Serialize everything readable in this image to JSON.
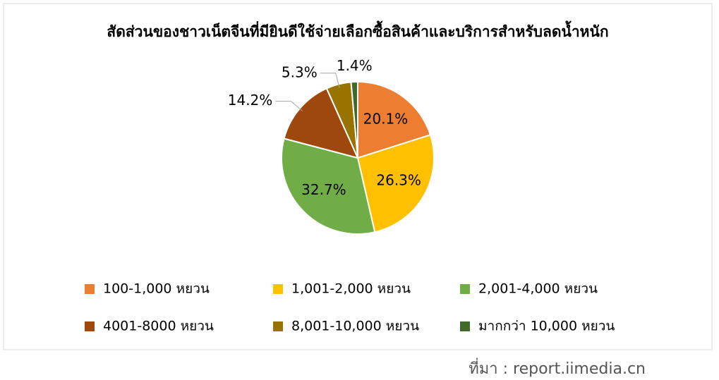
{
  "chart_data": {
    "type": "pie",
    "title": "สัดส่วนของชาวเน็ตจีนที่มียินดีใช้จ่ายเลือกซื้อสินค้าและบริการสำหรับลดน้ำหนัก",
    "categories": [
      "100-1,000 หยวน",
      "1,001-2,000 หยวน",
      "2,001-4,000 หยวน",
      "4001-8000 หยวน",
      "8,001-10,000 หยวน",
      "มากกว่า 10,000 หยวน"
    ],
    "values": [
      20.1,
      26.3,
      32.7,
      14.2,
      5.3,
      1.4
    ],
    "value_labels": [
      "20.1%",
      "26.3%",
      "32.7%",
      "14.2%",
      "5.3%",
      "1.4%"
    ],
    "colors": [
      "#ED7D31",
      "#FFC000",
      "#70AD47",
      "#9E480E",
      "#997300",
      "#43682B"
    ],
    "source": "ที่มา : report.iimedia.cn"
  }
}
